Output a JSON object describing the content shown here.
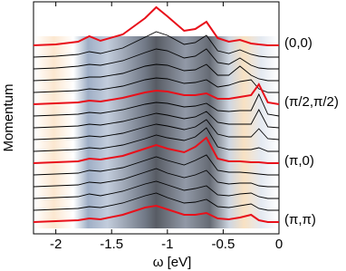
{
  "chart_data": {
    "type": "line",
    "xlabel": "ω [eV]",
    "ylabel": "Momentum",
    "x": [
      -2.2,
      -2.0,
      -1.8,
      -1.7,
      -1.6,
      -1.4,
      -1.2,
      -1.1,
      -1.0,
      -0.85,
      -0.75,
      -0.65,
      -0.55,
      -0.45,
      -0.35,
      -0.25,
      -0.18,
      -0.1,
      0
    ],
    "xlim": [
      -2.2,
      0
    ],
    "xticks": [
      -2,
      -1.5,
      -1,
      -0.5,
      0
    ],
    "series": [
      {
        "name": "(0,0)",
        "color": "#e8101a",
        "values": [
          0,
          1,
          4,
          10,
          5,
          12,
          30,
          42,
          32,
          16,
          18,
          26,
          8,
          4,
          6,
          2,
          1,
          0,
          0
        ]
      },
      {
        "color": "#000000",
        "values": [
          0,
          1,
          3,
          6,
          4,
          10,
          22,
          28,
          24,
          14,
          16,
          24,
          7,
          4,
          8,
          3,
          1,
          0,
          0
        ]
      },
      {
        "color": "#000000",
        "values": [
          0,
          1,
          3,
          5,
          4,
          9,
          18,
          22,
          20,
          12,
          14,
          22,
          7,
          5,
          12,
          4,
          1,
          0,
          0
        ]
      },
      {
        "color": "#000000",
        "values": [
          0,
          1,
          2,
          4,
          4,
          8,
          16,
          18,
          17,
          11,
          12,
          18,
          6,
          6,
          16,
          6,
          2,
          0,
          0
        ]
      },
      {
        "color": "#000000",
        "values": [
          0,
          1,
          2,
          4,
          3,
          7,
          14,
          16,
          15,
          10,
          11,
          14,
          6,
          8,
          12,
          14,
          4,
          0,
          0
        ]
      },
      {
        "name": "(π/2,π/2)",
        "color": "#e8101a",
        "values": [
          0,
          1,
          2,
          4,
          3,
          7,
          13,
          15,
          14,
          10,
          10,
          12,
          6,
          6,
          8,
          10,
          22,
          2,
          0
        ]
      },
      {
        "color": "#000000",
        "values": [
          0,
          1,
          2,
          4,
          3,
          7,
          13,
          15,
          14,
          10,
          11,
          14,
          6,
          5,
          6,
          6,
          24,
          2,
          0
        ]
      },
      {
        "color": "#000000",
        "values": [
          0,
          1,
          2,
          4,
          3,
          7,
          13,
          16,
          14,
          10,
          12,
          18,
          6,
          4,
          4,
          4,
          20,
          1,
          0
        ]
      },
      {
        "color": "#000000",
        "values": [
          0,
          1,
          2,
          4,
          3,
          7,
          14,
          17,
          15,
          11,
          14,
          22,
          6,
          3,
          3,
          3,
          12,
          1,
          0
        ]
      },
      {
        "color": "#000000",
        "values": [
          0,
          1,
          2,
          4,
          3,
          7,
          14,
          18,
          15,
          12,
          16,
          26,
          5,
          2,
          2,
          2,
          4,
          0,
          0
        ]
      },
      {
        "name": "(π,0)",
        "color": "#e8101a",
        "values": [
          0,
          1,
          2,
          5,
          4,
          8,
          16,
          20,
          16,
          12,
          18,
          28,
          5,
          2,
          2,
          1,
          1,
          0,
          0
        ]
      },
      {
        "color": "#000000",
        "values": [
          0,
          1,
          2,
          5,
          4,
          8,
          16,
          20,
          16,
          11,
          16,
          22,
          5,
          3,
          3,
          2,
          1,
          0,
          0
        ]
      },
      {
        "color": "#000000",
        "values": [
          0,
          1,
          2,
          5,
          4,
          8,
          16,
          20,
          15,
          10,
          13,
          18,
          5,
          3,
          4,
          4,
          1,
          0,
          0
        ]
      },
      {
        "color": "#000000",
        "values": [
          0,
          1,
          2,
          5,
          3,
          8,
          16,
          19,
          15,
          9,
          11,
          14,
          4,
          3,
          5,
          6,
          2,
          0,
          0
        ]
      },
      {
        "color": "#000000",
        "values": [
          0,
          1,
          2,
          4,
          3,
          8,
          16,
          19,
          14,
          8,
          9,
          12,
          4,
          3,
          5,
          7,
          2,
          0,
          0
        ]
      },
      {
        "name": "(π,π)",
        "color": "#e8101a",
        "values": [
          0,
          1,
          2,
          4,
          3,
          8,
          16,
          18,
          14,
          8,
          8,
          10,
          4,
          3,
          5,
          8,
          2,
          0,
          0
        ]
      }
    ]
  }
}
